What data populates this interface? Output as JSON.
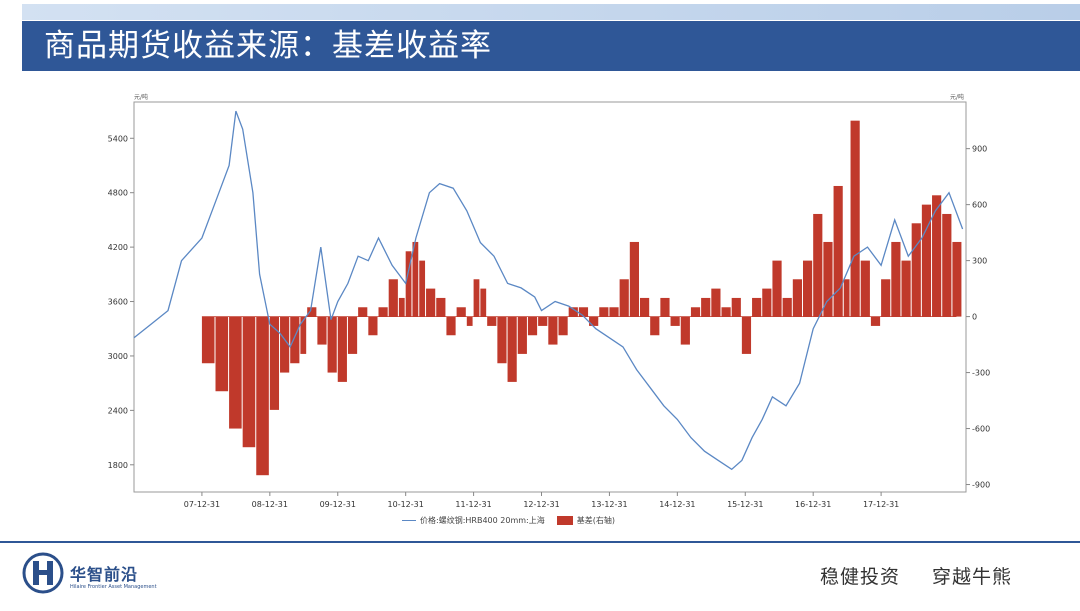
{
  "header": {
    "title": "商品期货收益来源：基差收益率"
  },
  "footer": {
    "logo_cn": "华智前沿",
    "logo_en": "Hilaire Frontier Asset Management",
    "slogan_left": "稳健投资",
    "slogan_right": "穿越牛熊"
  },
  "colors": {
    "header_bg": "#2f5797",
    "price_line": "#5b88c4",
    "basis_bar": "#c0392b"
  },
  "chart_data": {
    "type": "line+bar",
    "left_unit": "元/吨",
    "right_unit": "元/吨",
    "left_axis": {
      "ylim": [
        1500,
        5800
      ],
      "ticks": [
        1800,
        2400,
        3000,
        3600,
        4200,
        4800,
        5400
      ]
    },
    "right_axis": {
      "ylim": [
        -940,
        1150
      ],
      "ticks": [
        -900,
        -600,
        -300,
        0,
        300,
        600,
        900
      ]
    },
    "x_axis": {
      "xlim": [
        2007.0,
        2019.25
      ],
      "ticks": [
        "07-12-31",
        "08-12-31",
        "09-12-31",
        "10-12-31",
        "11-12-31",
        "12-12-31",
        "13-12-31",
        "14-12-31",
        "15-12-31",
        "16-12-31",
        "17-12-31"
      ]
    },
    "legend": [
      "价格:螺纹钢:HRB400 20mm:上海",
      "基差(右轴)"
    ],
    "price_series": {
      "name": "价格:螺纹钢:HRB400 20mm:上海",
      "axis": "left",
      "x": [
        2007.0,
        2007.25,
        2007.5,
        2007.7,
        2008.0,
        2008.2,
        2008.4,
        2008.5,
        2008.6,
        2008.75,
        2008.85,
        2009.0,
        2009.15,
        2009.3,
        2009.45,
        2009.6,
        2009.75,
        2009.9,
        2010.0,
        2010.15,
        2010.3,
        2010.45,
        2010.6,
        2010.8,
        2011.0,
        2011.15,
        2011.35,
        2011.5,
        2011.7,
        2011.9,
        2012.1,
        2012.3,
        2012.5,
        2012.7,
        2012.9,
        2013.0,
        2013.2,
        2013.4,
        2013.6,
        2013.8,
        2014.0,
        2014.2,
        2014.4,
        2014.6,
        2014.8,
        2015.0,
        2015.2,
        2015.4,
        2015.6,
        2015.8,
        2015.95,
        2016.1,
        2016.25,
        2016.4,
        2016.6,
        2016.8,
        2017.0,
        2017.2,
        2017.4,
        2017.6,
        2017.8,
        2018.0,
        2018.2,
        2018.4,
        2018.6,
        2018.8,
        2019.0,
        2019.2
      ],
      "values": [
        3200,
        3350,
        3500,
        4050,
        4300,
        4700,
        5100,
        5700,
        5500,
        4800,
        3900,
        3350,
        3250,
        3100,
        3350,
        3500,
        4200,
        3400,
        3600,
        3800,
        4100,
        4050,
        4300,
        4000,
        3800,
        4300,
        4800,
        4900,
        4850,
        4600,
        4250,
        4100,
        3800,
        3750,
        3650,
        3500,
        3600,
        3550,
        3450,
        3300,
        3200,
        3100,
        2850,
        2650,
        2450,
        2300,
        2100,
        1950,
        1850,
        1750,
        1850,
        2100,
        2300,
        2550,
        2450,
        2700,
        3300,
        3600,
        3750,
        4100,
        4200,
        4000,
        4500,
        4100,
        4300,
        4600,
        4800,
        4400
      ]
    },
    "basis_series": {
      "name": "基差(右轴)",
      "axis": "right",
      "x": [
        2008.0,
        2008.2,
        2008.4,
        2008.6,
        2008.8,
        2009.0,
        2009.15,
        2009.3,
        2009.45,
        2009.55,
        2009.7,
        2009.85,
        2010.0,
        2010.15,
        2010.3,
        2010.45,
        2010.6,
        2010.75,
        2010.9,
        2011.0,
        2011.1,
        2011.2,
        2011.3,
        2011.45,
        2011.6,
        2011.75,
        2011.9,
        2012.0,
        2012.1,
        2012.2,
        2012.35,
        2012.5,
        2012.65,
        2012.8,
        2012.95,
        2013.1,
        2013.25,
        2013.4,
        2013.55,
        2013.7,
        2013.85,
        2014.0,
        2014.15,
        2014.3,
        2014.45,
        2014.6,
        2014.75,
        2014.9,
        2015.05,
        2015.2,
        2015.35,
        2015.5,
        2015.65,
        2015.8,
        2015.95,
        2016.1,
        2016.25,
        2016.4,
        2016.55,
        2016.7,
        2016.85,
        2017.0,
        2017.15,
        2017.3,
        2017.45,
        2017.55,
        2017.7,
        2017.85,
        2018.0,
        2018.15,
        2018.3,
        2018.45,
        2018.6,
        2018.75,
        2018.9,
        2019.05
      ],
      "values": [
        -250,
        -400,
        -600,
        -700,
        -850,
        -500,
        -300,
        -250,
        -200,
        50,
        -150,
        -300,
        -350,
        -200,
        50,
        -100,
        50,
        200,
        100,
        350,
        400,
        300,
        150,
        100,
        -100,
        50,
        -50,
        200,
        150,
        -50,
        -250,
        -350,
        -200,
        -100,
        -50,
        -150,
        -100,
        50,
        50,
        -50,
        50,
        50,
        200,
        400,
        100,
        -100,
        100,
        -50,
        -150,
        50,
        100,
        150,
        50,
        100,
        -200,
        100,
        150,
        300,
        100,
        200,
        300,
        550,
        400,
        700,
        200,
        1050,
        300,
        -50,
        200,
        400,
        300,
        500,
        600,
        650,
        550,
        400
      ]
    }
  }
}
